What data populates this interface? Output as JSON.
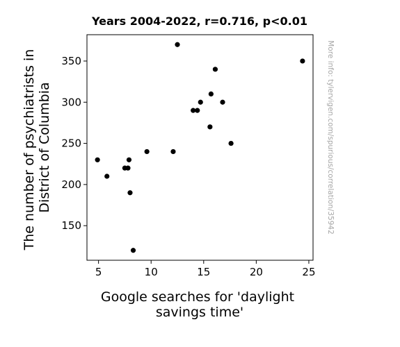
{
  "chart_data": {
    "type": "scatter",
    "title": "Years 2004-2022, r=0.716, p<0.01",
    "xlabel": "Google searches for 'daylight savings time'",
    "ylabel": "The number of psychiatrists in District of Columbia",
    "xlabel_lines": [
      "Google searches for 'daylight",
      "savings time'"
    ],
    "ylabel_lines": [
      "The number of psychiatrists in",
      "District of Columbia"
    ],
    "xlim": [
      3.9,
      25.4
    ],
    "ylim": [
      108,
      382
    ],
    "xticks": [
      5,
      10,
      15,
      20,
      25
    ],
    "yticks": [
      150,
      200,
      250,
      300,
      350
    ],
    "grid": false,
    "legend": "none",
    "marker_color": "#000000",
    "points": [
      {
        "x": 4.9,
        "y": 230
      },
      {
        "x": 5.8,
        "y": 210
      },
      {
        "x": 7.5,
        "y": 220
      },
      {
        "x": 7.8,
        "y": 220
      },
      {
        "x": 7.9,
        "y": 230
      },
      {
        "x": 8.0,
        "y": 190
      },
      {
        "x": 8.3,
        "y": 120
      },
      {
        "x": 9.6,
        "y": 240
      },
      {
        "x": 12.1,
        "y": 240
      },
      {
        "x": 12.5,
        "y": 370
      },
      {
        "x": 14.0,
        "y": 290
      },
      {
        "x": 14.4,
        "y": 290
      },
      {
        "x": 14.7,
        "y": 300
      },
      {
        "x": 15.6,
        "y": 270
      },
      {
        "x": 15.7,
        "y": 310
      },
      {
        "x": 16.1,
        "y": 340
      },
      {
        "x": 16.8,
        "y": 300
      },
      {
        "x": 17.6,
        "y": 250
      },
      {
        "x": 24.4,
        "y": 350
      }
    ]
  },
  "source_note": "More info: tylervigen.com/spurious/correlation/35942"
}
